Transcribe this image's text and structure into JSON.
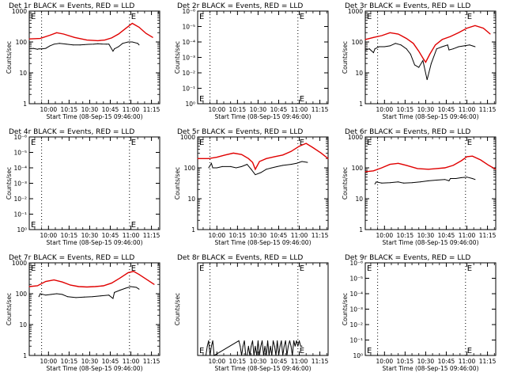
{
  "figure": {
    "background": "#ffffff",
    "frame_color": "#000000",
    "events_color": "#000000",
    "lld_color": "#e00000",
    "marker_letter": "E",
    "ylabel": "Counts/sec",
    "xlabel": "Start Time (08-Sep-15 09:46:00)",
    "x_tick_labels": [
      "10:00",
      "10:15",
      "10:30",
      "10:45",
      "11:00",
      "11:15"
    ],
    "dotted_line_color": "#000000"
  },
  "chart_data": [
    {
      "type": "line",
      "title": "Det 1r BLACK = Events, RED = LLD",
      "xlabel": "Start Time (08-Sep-15 09:46:00)",
      "ylabel": "Counts/sec",
      "y_scale": "log",
      "ylim": [
        1,
        1000
      ],
      "y_tick_labels": [
        "1",
        "10",
        "100",
        "1000"
      ],
      "xlim_minutes": [
        0,
        95
      ],
      "dotted_lines_minutes": [
        9,
        73
      ],
      "marker_E_minutes": 73,
      "series": [
        {
          "role": "events",
          "x": [
            0,
            3,
            6,
            7,
            9,
            12,
            15,
            18,
            22,
            27,
            32,
            37,
            40,
            43,
            47,
            50,
            53,
            56,
            58,
            61,
            62,
            65,
            68,
            72,
            75,
            79,
            80
          ],
          "values": [
            60,
            62,
            58,
            60,
            60,
            62,
            75,
            85,
            90,
            85,
            80,
            80,
            82,
            84,
            85,
            88,
            86,
            85,
            85,
            50,
            60,
            70,
            90,
            100,
            100,
            90,
            80
          ]
        },
        {
          "role": "lld",
          "x": [
            0,
            8,
            15,
            20,
            25,
            33,
            42,
            50,
            55,
            60,
            65,
            70,
            75,
            80,
            85,
            90
          ],
          "values": [
            125,
            130,
            165,
            200,
            180,
            140,
            115,
            110,
            115,
            135,
            180,
            270,
            400,
            300,
            190,
            140
          ]
        }
      ]
    },
    {
      "type": "line",
      "title": "Det 2r BLACK = Events, RED = LLD",
      "xlabel": "Start Time (08-Sep-15 09:46:00)",
      "ylabel": "Counts/sec",
      "y_scale": "log",
      "ylim": [
        1,
        1e-06
      ],
      "y_tick_labels": [
        "10⁻⁶",
        "10⁻⁵",
        "10⁻⁴",
        "10⁻³",
        "10⁻²",
        "10⁻¹",
        "10⁰"
      ],
      "xlim_minutes": [
        0,
        95
      ],
      "dotted_lines_minutes": [
        9,
        73
      ],
      "marker_E_minutes": 73,
      "series": []
    },
    {
      "type": "line",
      "title": "Det 3r BLACK = Events, RED = LLD",
      "xlabel": "Start Time (08-Sep-15 09:46:00)",
      "ylabel": "Counts/sec",
      "y_scale": "log",
      "ylim": [
        1,
        1000
      ],
      "y_tick_labels": [
        "1",
        "10",
        "100",
        "1000"
      ],
      "xlim_minutes": [
        0,
        95
      ],
      "dotted_lines_minutes": [
        9,
        73
      ],
      "marker_E_minutes": 73,
      "series": [
        {
          "role": "events",
          "x": [
            0,
            3,
            6,
            7,
            10,
            14,
            18,
            22,
            26,
            30,
            33,
            36,
            39,
            42,
            45,
            48,
            52,
            56,
            60,
            61,
            64,
            68,
            72,
            76,
            80
          ],
          "values": [
            55,
            60,
            45,
            60,
            70,
            70,
            75,
            90,
            80,
            60,
            40,
            18,
            15,
            25,
            6,
            20,
            60,
            70,
            80,
            55,
            60,
            70,
            75,
            80,
            70
          ]
        },
        {
          "role": "lld",
          "x": [
            0,
            6,
            12,
            18,
            24,
            30,
            35,
            39,
            42,
            44,
            47,
            51,
            56,
            62,
            68,
            74,
            80,
            86,
            91
          ],
          "values": [
            120,
            140,
            160,
            200,
            180,
            130,
            90,
            50,
            30,
            22,
            40,
            80,
            120,
            150,
            200,
            280,
            340,
            280,
            180
          ]
        }
      ]
    },
    {
      "type": "line",
      "title": "Det 4r BLACK = Events, RED = LLD",
      "xlabel": "Start Time (08-Sep-15 09:46:00)",
      "ylabel": "Counts/sec",
      "y_scale": "log",
      "ylim": [
        1,
        1e-06
      ],
      "y_tick_labels": [
        "10⁻⁶",
        "10⁻⁵",
        "10⁻⁴",
        "10⁻³",
        "10⁻²",
        "10⁻¹",
        "10⁰"
      ],
      "xlim_minutes": [
        0,
        95
      ],
      "dotted_lines_minutes": [
        9,
        73
      ],
      "marker_E_minutes": 73,
      "series": []
    },
    {
      "type": "line",
      "title": "Det 5r BLACK = Events, RED = LLD",
      "xlabel": "Start Time (08-Sep-15 09:46:00)",
      "ylabel": "Counts/sec",
      "y_scale": "log",
      "ylim": [
        1,
        1000
      ],
      "y_tick_labels": [
        "1",
        "10",
        "100",
        "1000"
      ],
      "xlim_minutes": [
        0,
        95
      ],
      "dotted_lines_minutes": [
        9,
        73
      ],
      "marker_E_minutes": 73,
      "series": [
        {
          "role": "events",
          "x": [
            8,
            10,
            11,
            14,
            18,
            24,
            28,
            32,
            36,
            39,
            42,
            46,
            50,
            54,
            58,
            62,
            68,
            72,
            74,
            76,
            80
          ],
          "values": [
            100,
            140,
            100,
            100,
            110,
            110,
            100,
            110,
            130,
            90,
            60,
            70,
            90,
            100,
            110,
            120,
            130,
            140,
            150,
            160,
            150
          ]
        },
        {
          "role": "lld",
          "x": [
            0,
            8,
            14,
            20,
            26,
            32,
            37,
            40,
            42,
            45,
            50,
            56,
            62,
            68,
            74,
            79,
            84,
            90,
            95
          ],
          "values": [
            200,
            200,
            220,
            260,
            300,
            270,
            200,
            150,
            90,
            160,
            200,
            230,
            260,
            340,
            500,
            620,
            450,
            300,
            200
          ]
        }
      ]
    },
    {
      "type": "line",
      "title": "Det 6r BLACK = Events, RED = LLD",
      "xlabel": "Start Time (08-Sep-15 09:46:00)",
      "ylabel": "Counts/sec",
      "y_scale": "log",
      "ylim": [
        1,
        1000
      ],
      "y_tick_labels": [
        "1",
        "10",
        "100",
        "1000"
      ],
      "xlim_minutes": [
        0,
        95
      ],
      "dotted_lines_minutes": [
        9,
        73
      ],
      "marker_E_minutes": 73,
      "series": [
        {
          "role": "events",
          "x": [
            7,
            8,
            12,
            18,
            24,
            28,
            34,
            40,
            46,
            52,
            58,
            61,
            62,
            66,
            70,
            74,
            78,
            80
          ],
          "values": [
            30,
            35,
            32,
            33,
            35,
            32,
            33,
            35,
            38,
            40,
            42,
            38,
            45,
            45,
            48,
            50,
            45,
            42
          ]
        },
        {
          "role": "lld",
          "x": [
            0,
            6,
            12,
            18,
            24,
            30,
            38,
            46,
            52,
            58,
            64,
            70,
            74,
            78,
            84,
            90,
            95
          ],
          "values": [
            75,
            80,
            100,
            130,
            140,
            120,
            95,
            90,
            95,
            100,
            120,
            170,
            230,
            240,
            180,
            120,
            90
          ]
        }
      ]
    },
    {
      "type": "line",
      "title": "Det 7r BLACK = Events, RED = LLD",
      "xlabel": "Start Time (08-Sep-15 09:46:00)",
      "ylabel": "Counts/sec",
      "y_scale": "log",
      "ylim": [
        1,
        1000
      ],
      "y_tick_labels": [
        "1",
        "10",
        "100",
        "1000"
      ],
      "xlim_minutes": [
        0,
        95
      ],
      "dotted_lines_minutes": [
        9,
        73
      ],
      "marker_E_minutes": 73,
      "series": [
        {
          "role": "events",
          "x": [
            7,
            8,
            12,
            16,
            20,
            24,
            28,
            34,
            40,
            46,
            52,
            58,
            61,
            62,
            66,
            70,
            74,
            78,
            80
          ],
          "values": [
            80,
            100,
            90,
            95,
            100,
            95,
            80,
            75,
            78,
            80,
            85,
            90,
            70,
            110,
            130,
            150,
            170,
            160,
            140
          ]
        },
        {
          "role": "lld",
          "x": [
            0,
            6,
            12,
            18,
            24,
            30,
            36,
            42,
            48,
            54,
            60,
            66,
            72,
            76,
            80,
            86,
            91
          ],
          "values": [
            170,
            180,
            250,
            280,
            240,
            190,
            170,
            165,
            170,
            180,
            220,
            320,
            480,
            530,
            420,
            280,
            200
          ]
        }
      ]
    },
    {
      "type": "line",
      "title": "Det 8r BLACK = Events, RED = LLD",
      "xlabel": "Start Time (08-Sep-15 09:46:00)",
      "ylabel": "Counts/sec",
      "y_scale": "log",
      "ylim": [
        1,
        1000
      ],
      "y_tick_labels": [],
      "xlim_minutes": [
        0,
        95
      ],
      "dotted_lines_minutes": [
        9,
        73
      ],
      "marker_E_minutes": 73,
      "series": [
        {
          "role": "events",
          "x": [
            6,
            7,
            8,
            9,
            10,
            11,
            12,
            30,
            31,
            32,
            33,
            34,
            35,
            36,
            37,
            38,
            39,
            40,
            41,
            42,
            43,
            44,
            45,
            46,
            47,
            48,
            49,
            50,
            51,
            52,
            53,
            54,
            55,
            56,
            57,
            58,
            59,
            60,
            61,
            62,
            63,
            64,
            65,
            66,
            67,
            68,
            69,
            70,
            71,
            72,
            73,
            74,
            75,
            76
          ],
          "values": [
            1,
            2,
            3,
            1,
            2,
            3,
            1,
            3,
            2,
            1,
            2,
            3,
            1,
            1,
            2,
            1,
            2,
            3,
            1,
            2,
            1,
            3,
            1,
            2,
            3,
            1,
            2,
            1,
            3,
            1,
            2,
            1,
            3,
            2,
            1,
            3,
            1,
            2,
            3,
            1,
            2,
            3,
            1,
            2,
            3,
            2,
            1,
            3,
            2,
            3,
            2,
            3,
            2,
            2
          ]
        }
      ]
    },
    {
      "type": "line",
      "title": "Det 9r BLACK = Events, RED = LLD",
      "xlabel": "Start Time (08-Sep-15 09:46:00)",
      "ylabel": "Counts/sec",
      "y_scale": "log",
      "ylim": [
        1,
        1e-06
      ],
      "y_tick_labels": [
        "10⁻⁶",
        "10⁻⁵",
        "10⁻⁴",
        "10⁻³",
        "10⁻²",
        "10⁻¹",
        "10⁰"
      ],
      "xlim_minutes": [
        0,
        95
      ],
      "dotted_lines_minutes": [
        9,
        73
      ],
      "marker_E_minutes": 73,
      "series": []
    }
  ]
}
